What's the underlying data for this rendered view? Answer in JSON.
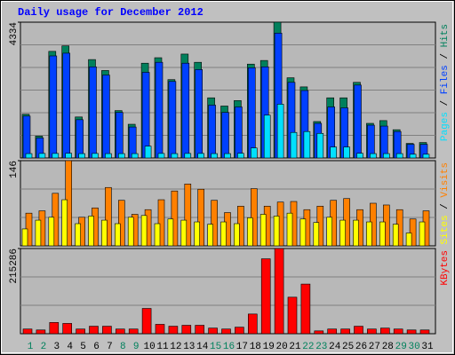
{
  "chart_data": [
    {
      "type": "bar",
      "title": "Daily usage for December 2012",
      "ylim": [
        0,
        4334
      ],
      "yticks": [
        4334
      ],
      "grid": true,
      "grid_divisions": 6,
      "legend_separator": " / ",
      "series": [
        {
          "name": "Hits",
          "color": "#00805c",
          "values": [
            1396,
            698,
            3403,
            3578,
            1309,
            3141,
            2792,
            1512,
            1076,
            3025,
            3200,
            2501,
            3316,
            3054,
            1920,
            1658,
            1832,
            2996,
            3112,
            4334,
            2560,
            2269,
            1163,
            1920,
            1920,
            2414,
            1105,
            1193,
            902,
            465,
            494
          ]
        },
        {
          "name": "Files",
          "color": "#0040ff",
          "values": [
            1338,
            640,
            3258,
            3345,
            1222,
            2909,
            2647,
            1454,
            989,
            2734,
            3054,
            2443,
            3025,
            2822,
            1687,
            1454,
            1629,
            2880,
            2909,
            3985,
            2414,
            2153,
            1105,
            1629,
            1600,
            2327,
            1047,
            1018,
            844,
            436,
            436
          ]
        },
        {
          "name": "Pages",
          "color": "#00e0ff",
          "values": [
            140,
            145,
            145,
            150,
            140,
            145,
            140,
            140,
            140,
            378,
            145,
            140,
            145,
            145,
            140,
            140,
            150,
            320,
            1367,
            1716,
            815,
            844,
            785,
            350,
            350,
            150,
            140,
            140,
            140,
            120,
            120
          ]
        }
      ]
    },
    {
      "type": "bar",
      "ylim": [
        0,
        146
      ],
      "yticks": [
        146
      ],
      "grid": true,
      "grid_divisions": 3,
      "legend_separator": " / ",
      "series": [
        {
          "name": "Visits",
          "color": "#ff8000",
          "values": [
            56,
            60,
            90,
            146,
            49,
            65,
            100,
            78,
            54,
            62,
            79,
            94,
            106,
            97,
            78,
            57,
            68,
            98,
            68,
            75,
            76,
            62,
            68,
            78,
            81,
            62,
            73,
            70,
            62,
            46,
            60
          ]
        },
        {
          "name": "Sites",
          "color": "#ffff00",
          "values": [
            29,
            44,
            49,
            79,
            38,
            51,
            44,
            38,
            49,
            52,
            38,
            46,
            44,
            41,
            37,
            41,
            38,
            48,
            54,
            51,
            56,
            46,
            40,
            49,
            44,
            44,
            41,
            41,
            37,
            22,
            41
          ]
        }
      ]
    },
    {
      "type": "bar",
      "ylim": [
        0,
        215286
      ],
      "yticks": [
        215286
      ],
      "grid": true,
      "grid_divisions": 3,
      "categories": [
        "1",
        "2",
        "3",
        "4",
        "5",
        "6",
        "7",
        "8",
        "9",
        "10",
        "11",
        "12",
        "13",
        "14",
        "15",
        "16",
        "17",
        "18",
        "19",
        "20",
        "21",
        "22",
        "23",
        "24",
        "25",
        "26",
        "27",
        "28",
        "29",
        "30",
        "31"
      ],
      "category_colors": [
        "#00805c",
        "#00805c",
        "#000000",
        "#000000",
        "#000000",
        "#000000",
        "#000000",
        "#00805c",
        "#00805c",
        "#000000",
        "#000000",
        "#000000",
        "#000000",
        "#000000",
        "#00805c",
        "#00805c",
        "#000000",
        "#000000",
        "#000000",
        "#000000",
        "#000000",
        "#00805c",
        "#00805c",
        "#000000",
        "#000000",
        "#000000",
        "#000000",
        "#000000",
        "#00805c",
        "#00805c",
        "#000000"
      ],
      "series": [
        {
          "name": "KBytes",
          "color": "#ff0000",
          "values": [
            11829,
            9463,
            28390,
            26024,
            11829,
            18926,
            18926,
            11829,
            11829,
            63876,
            23658,
            18926,
            21292,
            21292,
            14195,
            11829,
            16560,
            49682,
            189262,
            215286,
            92266,
            125387,
            7097,
            11829,
            11829,
            18926,
            11829,
            14195,
            11829,
            9463,
            9463
          ]
        }
      ]
    }
  ]
}
